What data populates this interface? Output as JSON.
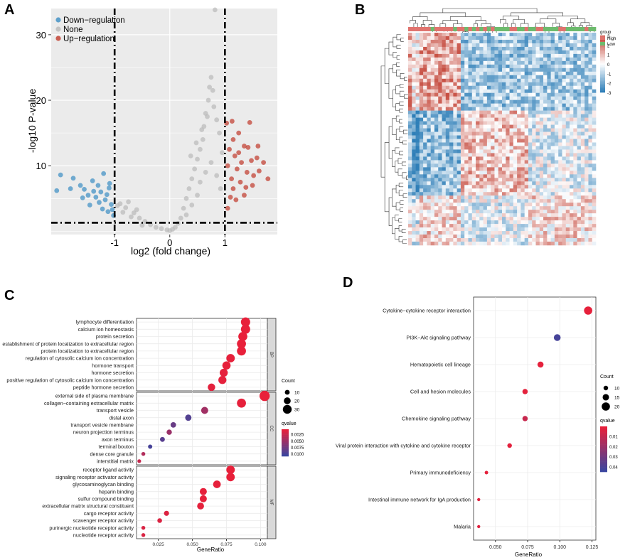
{
  "panels": {
    "A": {
      "label": "A",
      "chart_data": {
        "type": "scatter",
        "title": "",
        "xlabel": "log2 (fold change)",
        "ylabel": "-log10  P-value",
        "xlim": [
          -2.15,
          1.95
        ],
        "ylim": [
          -0.5,
          34
        ],
        "xticks": [
          -1,
          0,
          1
        ],
        "yticks": [
          10,
          20,
          30
        ],
        "xtick_labels": [
          "-1",
          "0",
          "1"
        ],
        "ytick_labels": [
          "10",
          "20",
          "30"
        ],
        "thresholds": {
          "logfc": [
            -1,
            1
          ],
          "pvalue_line": 1.3
        },
        "legend": [
          "Down−regulation",
          "None",
          "Up−regulation"
        ],
        "legend_position": "top-left",
        "colors": {
          "down": "#3b8dc3",
          "none": "#b9b9b9",
          "up": "#c0392b"
        },
        "series": [
          {
            "name": "Down−regulation",
            "points": [
              [
                -1.98,
                8.6
              ],
              [
                -1.75,
                8.1
              ],
              [
                -2.05,
                6.2
              ],
              [
                -1.62,
                7.0
              ],
              [
                -1.55,
                6.4
              ],
              [
                -1.48,
                5.5
              ],
              [
                -1.4,
                7.7
              ],
              [
                -1.34,
                5.2
              ],
              [
                -1.3,
                7.0
              ],
              [
                -1.25,
                6.0
              ],
              [
                -1.2,
                8.8
              ],
              [
                -1.17,
                4.8
              ],
              [
                -1.14,
                5.6
              ],
              [
                -1.1,
                6.6
              ],
              [
                -1.06,
                4.1
              ],
              [
                -1.04,
                3.3
              ],
              [
                -1.02,
                2.4
              ],
              [
                -1.45,
                4.0
              ],
              [
                -1.58,
                5.1
              ],
              [
                -1.22,
                3.4
              ],
              [
                -1.12,
                3.0
              ],
              [
                -1.38,
                6.1
              ],
              [
                -1.8,
                6.5
              ],
              [
                -1.09,
                7.3
              ],
              [
                -1.28,
                4.4
              ]
            ]
          },
          {
            "name": "None",
            "points": [
              [
                -0.9,
                4.2
              ],
              [
                -0.8,
                3.6
              ],
              [
                -0.75,
                4.5
              ],
              [
                -0.65,
                2.8
              ],
              [
                -0.55,
                2.0
              ],
              [
                -0.45,
                1.5
              ],
              [
                -0.35,
                1.0
              ],
              [
                -0.25,
                0.6
              ],
              [
                -0.15,
                0.4
              ],
              [
                -0.05,
                0.2
              ],
              [
                0.0,
                0.1
              ],
              [
                0.05,
                0.3
              ],
              [
                0.1,
                0.6
              ],
              [
                0.15,
                1.2
              ],
              [
                0.2,
                2.0
              ],
              [
                0.25,
                3.5
              ],
              [
                0.3,
                5.0
              ],
              [
                0.35,
                6.5
              ],
              [
                0.4,
                8.0
              ],
              [
                0.45,
                9.5
              ],
              [
                0.5,
                11.0
              ],
              [
                0.55,
                12.5
              ],
              [
                0.6,
                14.0
              ],
              [
                0.62,
                16.0
              ],
              [
                0.65,
                18.0
              ],
              [
                0.7,
                20.0
              ],
              [
                0.72,
                22.0
              ],
              [
                0.75,
                23.5
              ],
              [
                0.78,
                21.5
              ],
              [
                0.8,
                19.0
              ],
              [
                0.85,
                17.0
              ],
              [
                0.9,
                15.0
              ],
              [
                0.95,
                12.0
              ],
              [
                0.38,
                11.5
              ],
              [
                0.48,
                13.5
              ],
              [
                0.58,
                15.5
              ],
              [
                0.68,
                17.5
              ],
              [
                0.55,
                7.5
              ],
              [
                0.65,
                9.0
              ],
              [
                0.75,
                10.5
              ],
              [
                0.85,
                8.5
              ],
              [
                0.92,
                6.5
              ],
              [
                0.3,
                2.5
              ],
              [
                0.4,
                4.0
              ],
              [
                0.5,
                5.5
              ],
              [
                -0.6,
                3.3
              ],
              [
                -0.7,
                2.2
              ],
              [
                -0.85,
                2.9
              ],
              [
                -0.95,
                3.9
              ],
              [
                -0.5,
                0.9
              ],
              [
                0.82,
                33.8
              ]
            ]
          },
          {
            "name": "Up−regulation",
            "points": [
              [
                1.05,
                10.0
              ],
              [
                1.08,
                12.5
              ],
              [
                1.12,
                8.0
              ],
              [
                1.15,
                14.0
              ],
              [
                1.18,
                11.5
              ],
              [
                1.22,
                9.5
              ],
              [
                1.25,
                12.0
              ],
              [
                1.28,
                7.5
              ],
              [
                1.3,
                10.5
              ],
              [
                1.35,
                13.0
              ],
              [
                1.4,
                9.0
              ],
              [
                1.42,
                12.8
              ],
              [
                1.48,
                10.8
              ],
              [
                1.52,
                8.5
              ],
              [
                1.58,
                11.2
              ],
              [
                1.62,
                9.2
              ],
              [
                1.7,
                10.5
              ],
              [
                1.78,
                8.0
              ],
              [
                1.35,
                5.5
              ],
              [
                1.2,
                4.8
              ],
              [
                1.1,
                5.2
              ],
              [
                1.5,
                7.0
              ],
              [
                1.03,
                16.5
              ],
              [
                1.13,
                16.8
              ],
              [
                1.25,
                15.0
              ],
              [
                1.45,
                16.6
              ],
              [
                1.6,
                13.0
              ],
              [
                1.05,
                3.5
              ],
              [
                1.15,
                6.5
              ],
              [
                1.38,
                6.7
              ]
            ]
          }
        ]
      }
    },
    "B": {
      "label": "B",
      "chart_data": {
        "type": "heatmap",
        "title": "",
        "rows": 60,
        "cols": 50,
        "color_scale": {
          "min": -3,
          "max": 3,
          "low_color": "#2f7fb8",
          "mid_color": "#ffffff",
          "high_color": "#c0392b"
        },
        "scale_ticks": [
          "3",
          "2",
          "1",
          "0",
          "-1",
          "-2",
          "-3"
        ],
        "annotation_track": {
          "name": "group",
          "levels": [
            "High",
            "Low"
          ],
          "colors": {
            "High": "#e0736e",
            "Low": "#6dbb6d"
          }
        },
        "legend_title": "group"
      }
    },
    "C": {
      "label": "C",
      "chart_data": {
        "type": "scatter",
        "title": "",
        "xlabel": "GeneRatio",
        "xlim": [
          0.009,
          0.105
        ],
        "xticks": [
          0.025,
          0.05,
          0.075,
          0.1
        ],
        "xtick_labels": [
          "0.025",
          "0.050",
          "0.075",
          "0.100"
        ],
        "size_legend": {
          "title": "Count",
          "values": [
            10,
            20,
            30
          ],
          "labels": [
            "10",
            "20",
            "30"
          ]
        },
        "color_legend": {
          "title": "qvalue",
          "ticks": [
            "0.0025",
            "0.0050",
            "0.0075",
            "0.0100"
          ],
          "low_color": "#e8203a",
          "high_color": "#3a46a0",
          "range": [
            0.0005,
            0.011
          ]
        },
        "facets": [
          {
            "name": "BP",
            "terms": [
              {
                "term": "lymphocyte differentiation",
                "gene_ratio": 0.089,
                "count": 32,
                "qvalue": 0.0005
              },
              {
                "term": "calcium ion homeostasis",
                "gene_ratio": 0.089,
                "count": 32,
                "qvalue": 0.0005
              },
              {
                "term": "protein secretion",
                "gene_ratio": 0.087,
                "count": 31,
                "qvalue": 0.0005
              },
              {
                "term": "establishment of protein localization to extracellular region",
                "gene_ratio": 0.086,
                "count": 31,
                "qvalue": 0.0005
              },
              {
                "term": "protein localization to extracellular region",
                "gene_ratio": 0.086,
                "count": 31,
                "qvalue": 0.0005
              },
              {
                "term": "regulation of cytosolic calcium ion concentration",
                "gene_ratio": 0.078,
                "count": 28,
                "qvalue": 0.0006
              },
              {
                "term": "hormone transport",
                "gene_ratio": 0.075,
                "count": 27,
                "qvalue": 0.0006
              },
              {
                "term": "hormone secretion",
                "gene_ratio": 0.073,
                "count": 26,
                "qvalue": 0.0007
              },
              {
                "term": "positive regulation of cytosolic calcium ion concentration",
                "gene_ratio": 0.072,
                "count": 26,
                "qvalue": 0.0007
              },
              {
                "term": "peptide hormone secretion",
                "gene_ratio": 0.064,
                "count": 23,
                "qvalue": 0.0008
              }
            ]
          },
          {
            "name": "CC",
            "terms": [
              {
                "term": "external side of plasma membrane",
                "gene_ratio": 0.103,
                "count": 37,
                "qvalue": 0.0004
              },
              {
                "term": "collagen−containing extracellular matrix",
                "gene_ratio": 0.086,
                "count": 31,
                "qvalue": 0.0006
              },
              {
                "term": "transport vesicle",
                "gene_ratio": 0.059,
                "count": 21,
                "qvalue": 0.0048
              },
              {
                "term": "distal axon",
                "gene_ratio": 0.047,
                "count": 17,
                "qvalue": 0.0095
              },
              {
                "term": "transport vesicle membrane",
                "gene_ratio": 0.036,
                "count": 13,
                "qvalue": 0.0082
              },
              {
                "term": "neuron projection terminus",
                "gene_ratio": 0.033,
                "count": 12,
                "qvalue": 0.0052
              },
              {
                "term": "axon terminus",
                "gene_ratio": 0.028,
                "count": 10,
                "qvalue": 0.0092
              },
              {
                "term": "terminal bouton",
                "gene_ratio": 0.019,
                "count": 7,
                "qvalue": 0.0102
              },
              {
                "term": "dense core granule",
                "gene_ratio": 0.014,
                "count": 5,
                "qvalue": 0.0038
              },
              {
                "term": "interstitial matrix",
                "gene_ratio": 0.011,
                "count": 4,
                "qvalue": 0.0026
              }
            ]
          },
          {
            "name": "MF",
            "terms": [
              {
                "term": "receptor ligand activity",
                "gene_ratio": 0.078,
                "count": 28,
                "qvalue": 0.0005
              },
              {
                "term": "signaling receptor activator activity",
                "gene_ratio": 0.078,
                "count": 28,
                "qvalue": 0.0005
              },
              {
                "term": "glycosaminoglycan binding",
                "gene_ratio": 0.068,
                "count": 24,
                "qvalue": 0.0006
              },
              {
                "term": "heparin binding",
                "gene_ratio": 0.058,
                "count": 21,
                "qvalue": 0.0006
              },
              {
                "term": "sulfur compound binding",
                "gene_ratio": 0.058,
                "count": 21,
                "qvalue": 0.0006
              },
              {
                "term": "extracellular matrix structural constituent",
                "gene_ratio": 0.056,
                "count": 20,
                "qvalue": 0.0007
              },
              {
                "term": "cargo receptor activity",
                "gene_ratio": 0.031,
                "count": 11,
                "qvalue": 0.0012
              },
              {
                "term": "scavenger receptor activity",
                "gene_ratio": 0.026,
                "count": 9,
                "qvalue": 0.0013
              },
              {
                "term": "purinergic nucleotide receptor activity",
                "gene_ratio": 0.014,
                "count": 5,
                "qvalue": 0.0014
              },
              {
                "term": "nucleotide receptor activity",
                "gene_ratio": 0.014,
                "count": 5,
                "qvalue": 0.0014
              }
            ]
          }
        ]
      }
    },
    "D": {
      "label": "D",
      "chart_data": {
        "type": "scatter",
        "title": "",
        "xlabel": "GeneRatio",
        "xlim": [
          0.033,
          0.128
        ],
        "xticks": [
          0.05,
          0.075,
          0.1,
          0.125
        ],
        "xtick_labels": [
          "0.050",
          "0.075",
          "0.100",
          "0.125"
        ],
        "size_legend": {
          "title": "Count",
          "values": [
            10,
            15,
            20
          ],
          "labels": [
            "10",
            "15",
            "20"
          ]
        },
        "color_legend": {
          "title": "qvalue",
          "ticks": [
            "0.01",
            "0.02",
            "0.03",
            "0.04"
          ],
          "low_color": "#e8203a",
          "high_color": "#3a46a0",
          "range": [
            0.0,
            0.045
          ]
        },
        "terms": [
          {
            "term": "Cytokine−cytokine receptor interaction",
            "gene_ratio": 0.122,
            "count": 20,
            "qvalue": 0.0005
          },
          {
            "term": "PI3K−Akt signaling pathway",
            "gene_ratio": 0.098,
            "count": 16,
            "qvalue": 0.042
          },
          {
            "term": "Hematopoietic cell lineage",
            "gene_ratio": 0.085,
            "count": 14,
            "qvalue": 0.0008
          },
          {
            "term": "Cell and hesion molecules",
            "gene_ratio": 0.073,
            "count": 12,
            "qvalue": 0.001
          },
          {
            "term": "Chemokine signaling pathway",
            "gene_ratio": 0.073,
            "count": 12,
            "qvalue": 0.0085
          },
          {
            "term": "Viral protein interaction with cytokine and cytokine receptor",
            "gene_ratio": 0.061,
            "count": 10,
            "qvalue": 0.0012
          },
          {
            "term": "Primary immunodeficiency",
            "gene_ratio": 0.043,
            "count": 7,
            "qvalue": 0.0008
          },
          {
            "term": "Intestinal immune network for IgA production",
            "gene_ratio": 0.037,
            "count": 6,
            "qvalue": 0.0018
          },
          {
            "term": "Malaria",
            "gene_ratio": 0.037,
            "count": 6,
            "qvalue": 0.002
          }
        ]
      }
    }
  }
}
